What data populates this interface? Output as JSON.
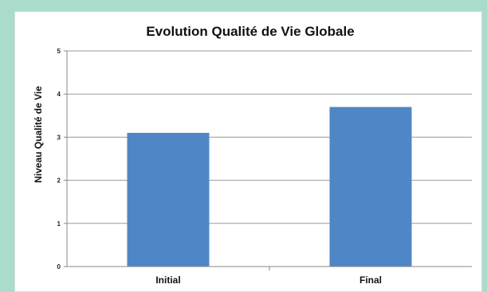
{
  "chart_data": {
    "type": "bar",
    "title": "Evolution  Qualité de Vie Globale",
    "xlabel": "",
    "ylabel": "Niveau Qualité de Vie",
    "categories": [
      "Initial",
      "Final"
    ],
    "values": [
      3.1,
      3.7
    ],
    "ylim": [
      0,
      5
    ],
    "yticks": [
      "0",
      "1",
      "2",
      "3",
      "4",
      "5"
    ],
    "grid": true,
    "legend": "none",
    "bar_color": "#4f86c6"
  }
}
